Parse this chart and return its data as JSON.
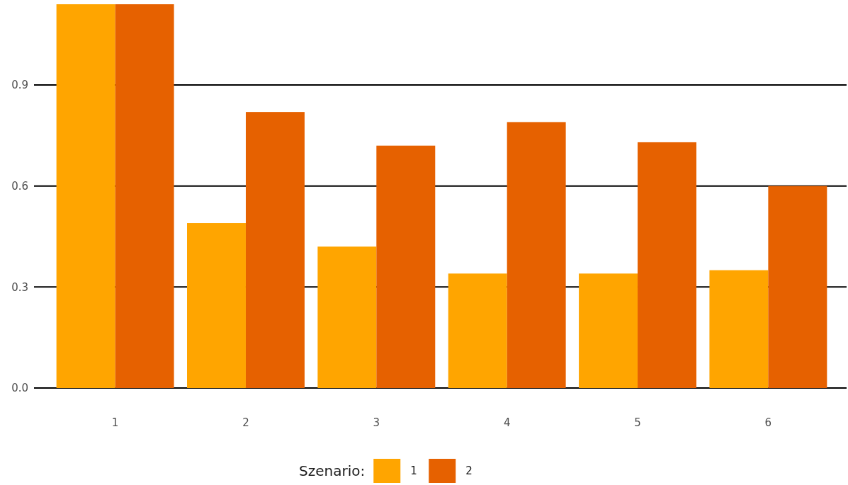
{
  "chart_data": {
    "type": "bar",
    "categories": [
      "1",
      "2",
      "3",
      "4",
      "5",
      "6"
    ],
    "series": [
      {
        "name": "1",
        "color": "#ffa500",
        "values": [
          1.14,
          0.49,
          0.42,
          0.34,
          0.34,
          0.35
        ]
      },
      {
        "name": "2",
        "color": "#e66100",
        "values": [
          1.14,
          0.82,
          0.72,
          0.79,
          0.73,
          0.6
        ]
      }
    ],
    "ylim": [
      0,
      1.14
    ],
    "yticks": [
      {
        "value": 0,
        "label": "0.0"
      },
      {
        "value": 0.3,
        "label": "0.3"
      },
      {
        "value": 0.6,
        "label": "0.6"
      },
      {
        "value": 0.9,
        "label": "0.9"
      }
    ],
    "grid": "y",
    "legend": "bottom",
    "legend_title": "Szenario:"
  }
}
